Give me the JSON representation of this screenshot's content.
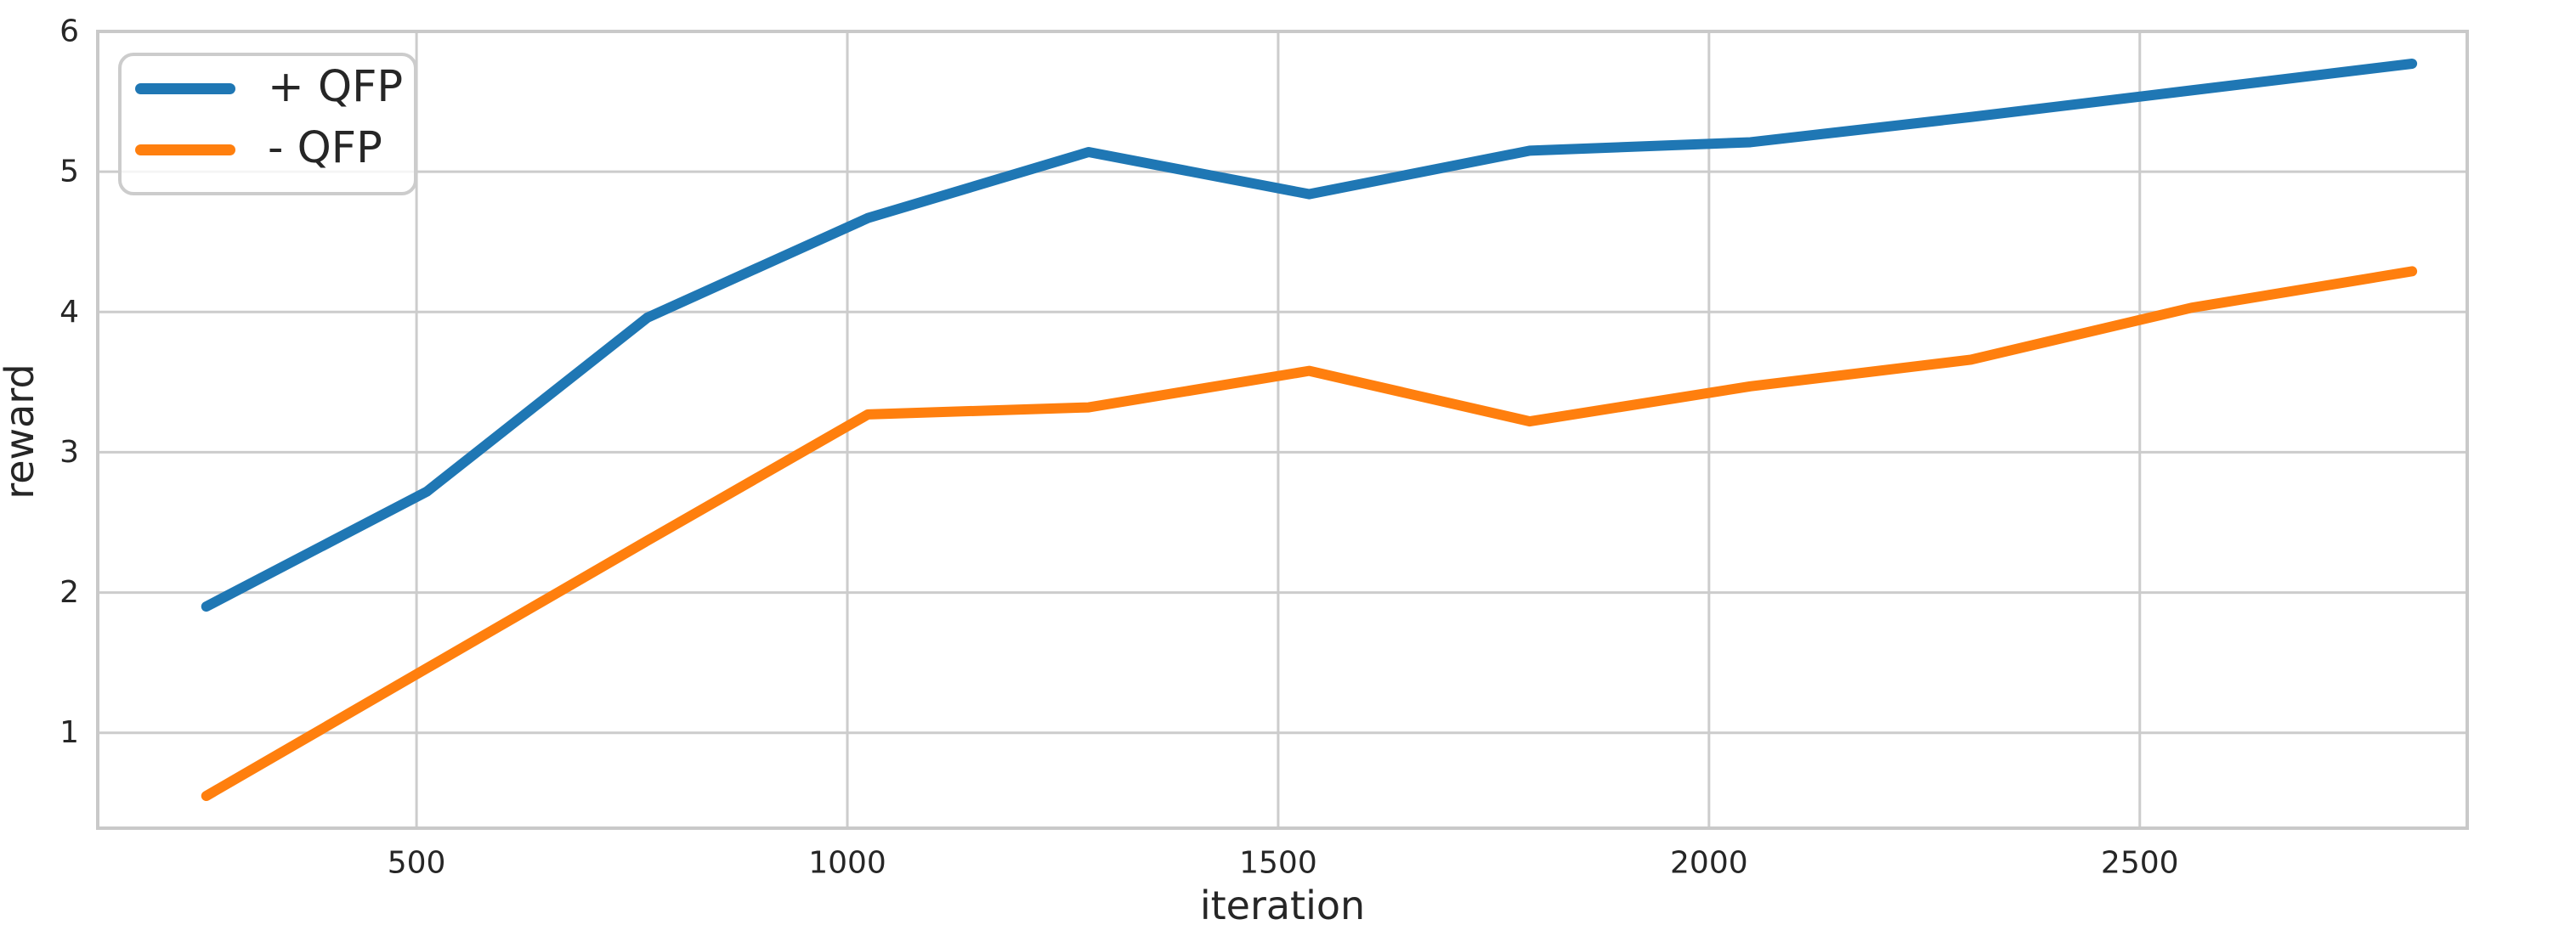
{
  "chart_data": {
    "type": "line",
    "title": "",
    "xlabel": "iteration",
    "ylabel": "reward",
    "x": [
      256,
      512,
      768,
      1024,
      1280,
      1536,
      1792,
      2048,
      2304,
      2560,
      2816
    ],
    "series": [
      {
        "name": "+ QFP",
        "slug": "plus-qfp",
        "color": "#1f77b4",
        "values": [
          1.9,
          2.72,
          3.96,
          4.67,
          5.14,
          4.84,
          5.15,
          5.21,
          5.39,
          5.58,
          5.77
        ]
      },
      {
        "name": "- QFP",
        "slug": "minus-qfp",
        "color": "#ff7f0e",
        "values": [
          0.55,
          1.46,
          2.37,
          3.27,
          3.32,
          3.58,
          3.22,
          3.47,
          3.66,
          4.03,
          4.29
        ]
      }
    ],
    "xticks": [
      500,
      1000,
      1500,
      2000,
      2500
    ],
    "yticks": [
      1,
      2,
      3,
      4,
      5,
      6
    ],
    "xlim": [
      130,
      2880
    ],
    "ylim": [
      0.32,
      6.0
    ],
    "grid": true,
    "legend_position": "upper-left",
    "line_width": 12
  },
  "style": {
    "background": "#ffffff",
    "grid_color": "#cccccc",
    "spine_color": "#c9c9c9",
    "text_color": "#262626",
    "legend_border_color": "#cccccc",
    "legend_background": "rgba(255,255,255,0.8)",
    "tick_font_size": 36,
    "label_font_size": 46,
    "legend_font_size": 51
  }
}
